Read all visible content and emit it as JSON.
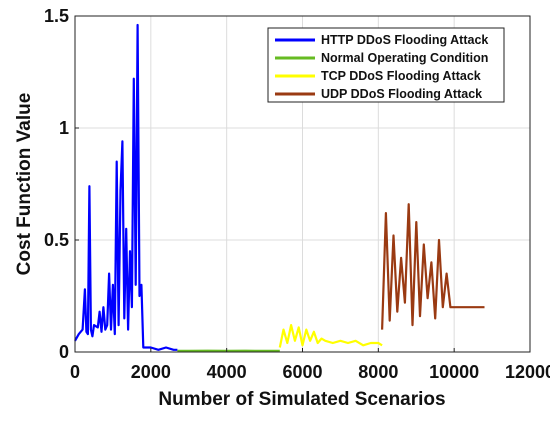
{
  "chart_data": {
    "type": "line",
    "title": "",
    "xlabel": "Number of Simulated Scenarios",
    "ylabel": "Cost Function Value",
    "xlim": [
      0,
      12000
    ],
    "ylim": [
      0,
      1.5
    ],
    "grid": true,
    "legend_position": "top-right",
    "x_ticks": [
      "0",
      "2000",
      "4000",
      "6000",
      "8000",
      "10000",
      "12000"
    ],
    "y_ticks": [
      "0",
      "0.5",
      "1",
      "1.5"
    ],
    "series": [
      {
        "name": "HTTP DDoS Flooding Attack",
        "color": "#0000ff",
        "x": [
          0,
          100,
          200,
          260,
          300,
          340,
          380,
          420,
          460,
          500,
          600,
          650,
          700,
          750,
          800,
          850,
          900,
          950,
          1000,
          1050,
          1100,
          1150,
          1200,
          1250,
          1300,
          1350,
          1400,
          1450,
          1500,
          1550,
          1600,
          1650,
          1700,
          1750,
          1800,
          2000,
          2200,
          2400,
          2600,
          2700
        ],
        "y": [
          0.05,
          0.08,
          0.1,
          0.28,
          0.09,
          0.08,
          0.74,
          0.1,
          0.07,
          0.12,
          0.11,
          0.18,
          0.09,
          0.2,
          0.1,
          0.12,
          0.35,
          0.1,
          0.3,
          0.08,
          0.85,
          0.12,
          0.72,
          0.94,
          0.15,
          0.55,
          0.1,
          0.45,
          0.2,
          1.22,
          0.3,
          1.46,
          0.25,
          0.3,
          0.02,
          0.02,
          0.01,
          0.02,
          0.01,
          0.01
        ]
      },
      {
        "name": "Normal Operating Condition",
        "color": "#66bb22",
        "x": [
          2700,
          3000,
          3500,
          4000,
          4500,
          5000,
          5400
        ],
        "y": [
          0.005,
          0.005,
          0.006,
          0.005,
          0.006,
          0.005,
          0.005
        ]
      },
      {
        "name": "TCP DDoS Flooding Attack",
        "color": "#ffff00",
        "x": [
          5400,
          5500,
          5600,
          5700,
          5800,
          5900,
          6000,
          6100,
          6200,
          6300,
          6400,
          6500,
          6600,
          6800,
          7000,
          7200,
          7400,
          7600,
          7800,
          8000,
          8100
        ],
        "y": [
          0.02,
          0.1,
          0.04,
          0.12,
          0.05,
          0.11,
          0.03,
          0.1,
          0.05,
          0.09,
          0.04,
          0.06,
          0.05,
          0.04,
          0.05,
          0.04,
          0.05,
          0.03,
          0.04,
          0.04,
          0.03
        ]
      },
      {
        "name": "UDP DDoS Flooding Attack",
        "color": "#9a3a12",
        "x": [
          8100,
          8200,
          8300,
          8400,
          8500,
          8600,
          8700,
          8800,
          8900,
          9000,
          9100,
          9200,
          9300,
          9400,
          9500,
          9600,
          9700,
          9800,
          9900,
          10200,
          10500,
          10800
        ],
        "y": [
          0.1,
          0.62,
          0.14,
          0.52,
          0.18,
          0.42,
          0.22,
          0.66,
          0.12,
          0.58,
          0.16,
          0.48,
          0.24,
          0.4,
          0.15,
          0.5,
          0.2,
          0.35,
          0.2,
          0.2,
          0.2,
          0.2
        ]
      }
    ]
  }
}
